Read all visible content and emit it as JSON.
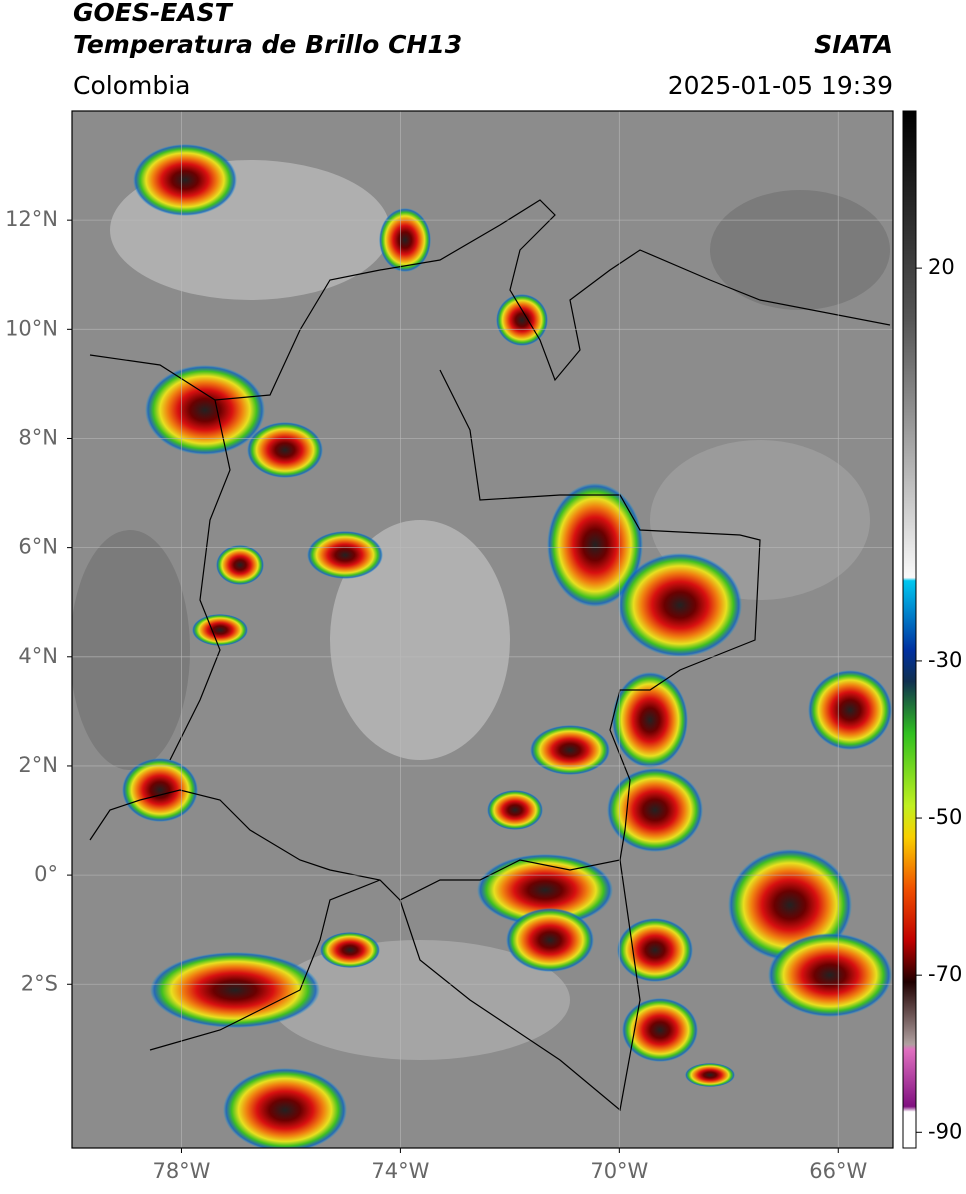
{
  "header": {
    "title": "GOES-EAST",
    "subtitle": "Temperatura de Brillo CH13",
    "source": "SIATA",
    "region": "Colombia",
    "datetime": "2025-01-05 19:39"
  },
  "map": {
    "xlim": [
      -80,
      -65
    ],
    "ylim": [
      -5,
      14
    ],
    "xticks": [
      {
        "value": -78,
        "label": "78°W"
      },
      {
        "value": -74,
        "label": "74°W"
      },
      {
        "value": -70,
        "label": "70°W"
      },
      {
        "value": -66,
        "label": "66°W"
      }
    ],
    "yticks": [
      {
        "value": 12,
        "label": "12°N"
      },
      {
        "value": 10,
        "label": "10°N"
      },
      {
        "value": 8,
        "label": "8°N"
      },
      {
        "value": 6,
        "label": "6°N"
      },
      {
        "value": 4,
        "label": "4°N"
      },
      {
        "value": 2,
        "label": "2°N"
      },
      {
        "value": 0,
        "label": "0°"
      },
      {
        "value": -2,
        "label": "2°S"
      }
    ]
  },
  "colorbar": {
    "lim": [
      -92,
      40
    ],
    "ticks": [
      20,
      -30,
      -50,
      -70,
      -90
    ]
  }
}
